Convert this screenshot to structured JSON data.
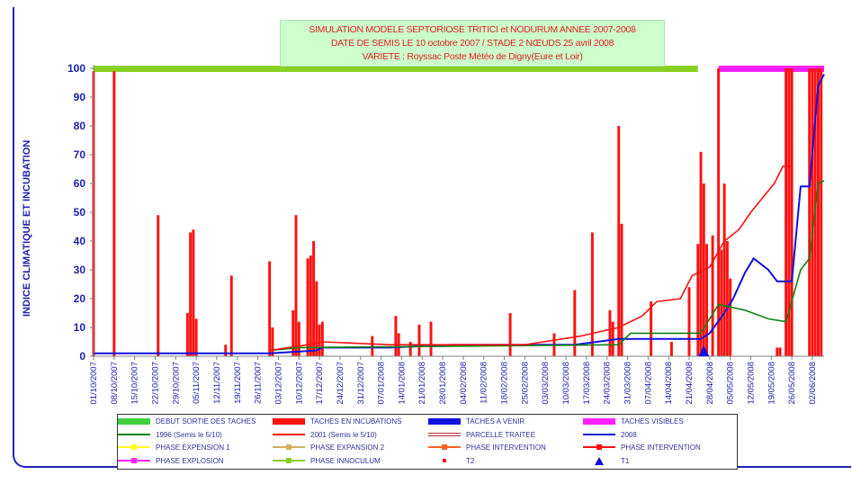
{
  "title_lines": [
    "SIMULATION MODELE SEPTORIOSE TRITICI et NODURUM ANNEE 2007-2008",
    "DATE DE SEMIS LE 10 octobre 2007  /  STADE 2 NŒUDS 25 avril 2008",
    "VARIETE : Royssac        Poste Météo de Digny(Eure et Loir)"
  ],
  "colors": {
    "red": "#ff1010",
    "blue": "#1010e0",
    "green": "#108010",
    "lime": "#88d020",
    "magenta": "#ff20ff",
    "axis_text": "#2020b0",
    "yellow": "#ffff20",
    "tan": "#d0b060",
    "orange": "#ff6020"
  },
  "chart_data": {
    "type": "bar+line",
    "ylabel": "INDICE CLIMATIQUE ET INCUBATION",
    "ylim": [
      0,
      100
    ],
    "yticks": [
      0,
      10,
      20,
      30,
      40,
      50,
      60,
      70,
      80,
      90,
      100
    ],
    "xlim": [
      "2007-10-01",
      "2008-06-06"
    ],
    "xticks": [
      "01/10/2007",
      "08/10/2007",
      "15/10/2007",
      "22/10/2007",
      "29/10/2007",
      "05/11/2007",
      "12/11/2007",
      "19/11/2007",
      "26/11/2007",
      "03/12/2007",
      "10/12/2007",
      "17/12/2007",
      "24/12/2007",
      "31/12/2007",
      "07/01/2008",
      "14/01/2008",
      "21/01/2008",
      "28/01/2008",
      "04/02/2008",
      "11/02/2008",
      "18/02/2008",
      "25/02/2008",
      "03/03/2008",
      "10/03/2008",
      "17/03/2008",
      "24/03/2008",
      "31/03/2008",
      "07/04/2008",
      "14/04/2008",
      "21/04/2008",
      "28/04/2008",
      "05/05/2008",
      "12/05/2008",
      "19/05/2008",
      "26/05/2008",
      "02/06/2008"
    ],
    "incubation_bars": [
      {
        "date": "2007-10-01",
        "value": 99
      },
      {
        "date": "2007-10-08",
        "value": 99
      },
      {
        "date": "2007-10-23",
        "value": 49
      },
      {
        "date": "2007-11-02",
        "value": 15
      },
      {
        "date": "2007-11-03",
        "value": 43
      },
      {
        "date": "2007-11-04",
        "value": 44
      },
      {
        "date": "2007-11-05",
        "value": 13
      },
      {
        "date": "2007-11-15",
        "value": 4
      },
      {
        "date": "2007-11-17",
        "value": 28
      },
      {
        "date": "2007-11-30",
        "value": 33
      },
      {
        "date": "2007-12-01",
        "value": 10
      },
      {
        "date": "2007-12-08",
        "value": 16
      },
      {
        "date": "2007-12-09",
        "value": 49
      },
      {
        "date": "2007-12-10",
        "value": 12
      },
      {
        "date": "2007-12-13",
        "value": 34
      },
      {
        "date": "2007-12-14",
        "value": 35
      },
      {
        "date": "2007-12-15",
        "value": 40
      },
      {
        "date": "2007-12-16",
        "value": 26
      },
      {
        "date": "2007-12-17",
        "value": 11
      },
      {
        "date": "2007-12-18",
        "value": 12
      },
      {
        "date": "2008-01-04",
        "value": 7
      },
      {
        "date": "2008-01-12",
        "value": 14
      },
      {
        "date": "2008-01-13",
        "value": 8
      },
      {
        "date": "2008-01-17",
        "value": 5
      },
      {
        "date": "2008-01-20",
        "value": 11
      },
      {
        "date": "2008-01-24",
        "value": 12
      },
      {
        "date": "2008-02-20",
        "value": 15
      },
      {
        "date": "2008-03-06",
        "value": 8
      },
      {
        "date": "2008-03-13",
        "value": 23
      },
      {
        "date": "2008-03-19",
        "value": 43
      },
      {
        "date": "2008-03-25",
        "value": 16
      },
      {
        "date": "2008-03-26",
        "value": 12
      },
      {
        "date": "2008-03-28",
        "value": 80
      },
      {
        "date": "2008-03-29",
        "value": 46
      },
      {
        "date": "2008-04-08",
        "value": 19
      },
      {
        "date": "2008-04-15",
        "value": 5
      },
      {
        "date": "2008-04-21",
        "value": 24
      },
      {
        "date": "2008-04-24",
        "value": 39
      },
      {
        "date": "2008-04-25",
        "value": 71
      },
      {
        "date": "2008-04-26",
        "value": 60
      },
      {
        "date": "2008-04-27",
        "value": 39
      },
      {
        "date": "2008-04-29",
        "value": 42
      },
      {
        "date": "2008-05-01",
        "value": 100
      },
      {
        "date": "2008-05-02",
        "value": 37
      },
      {
        "date": "2008-05-03",
        "value": 60
      },
      {
        "date": "2008-05-04",
        "value": 40
      },
      {
        "date": "2008-05-05",
        "value": 27
      },
      {
        "date": "2008-05-21",
        "value": 3
      },
      {
        "date": "2008-05-22",
        "value": 3
      },
      {
        "date": "2008-05-24",
        "value": 100
      },
      {
        "date": "2008-05-25",
        "value": 100
      },
      {
        "date": "2008-05-26",
        "value": 100
      },
      {
        "date": "2008-06-01",
        "value": 100
      },
      {
        "date": "2008-06-02",
        "value": 100
      },
      {
        "date": "2008-06-03",
        "value": 100
      },
      {
        "date": "2008-06-04",
        "value": 100
      },
      {
        "date": "2008-06-05",
        "value": 100
      }
    ],
    "series": [
      {
        "name": "2008",
        "color": "#1010e0",
        "points": [
          [
            "2007-10-01",
            1
          ],
          [
            "2007-11-30",
            1
          ],
          [
            "2007-12-16",
            2
          ],
          [
            "2007-12-18",
            3
          ],
          [
            "2008-01-10",
            3
          ],
          [
            "2008-01-31",
            4
          ],
          [
            "2008-02-25",
            4
          ],
          [
            "2008-03-13",
            4
          ],
          [
            "2008-03-28",
            6
          ],
          [
            "2008-04-25",
            6
          ],
          [
            "2008-04-28",
            8
          ],
          [
            "2008-05-03",
            15
          ],
          [
            "2008-05-06",
            20
          ],
          [
            "2008-05-10",
            29
          ],
          [
            "2008-05-13",
            34
          ],
          [
            "2008-05-18",
            30
          ],
          [
            "2008-05-21",
            26
          ],
          [
            "2008-05-26",
            26
          ],
          [
            "2008-05-29",
            59
          ],
          [
            "2008-06-01",
            59
          ],
          [
            "2008-06-04",
            94
          ],
          [
            "2008-06-06",
            98
          ]
        ]
      },
      {
        "name": "1996 (Semis le 5/10)",
        "color": "#108010",
        "points": [
          [
            "2007-11-30",
            2
          ],
          [
            "2007-12-10",
            3
          ],
          [
            "2008-03-28",
            4
          ],
          [
            "2008-04-01",
            8
          ],
          [
            "2008-04-25",
            8
          ],
          [
            "2008-05-01",
            18
          ],
          [
            "2008-05-10",
            16
          ],
          [
            "2008-05-18",
            13
          ],
          [
            "2008-05-24",
            12
          ],
          [
            "2008-05-29",
            30
          ],
          [
            "2008-06-01",
            34
          ],
          [
            "2008-06-04",
            60
          ],
          [
            "2008-06-06",
            61
          ]
        ]
      },
      {
        "name": "2001 (Semis le 5/10)",
        "color": "#ff1010",
        "points": [
          [
            "2007-11-30",
            2
          ],
          [
            "2007-12-13",
            4
          ],
          [
            "2007-12-18",
            5
          ],
          [
            "2008-01-10",
            4
          ],
          [
            "2008-02-25",
            4
          ],
          [
            "2008-03-15",
            7
          ],
          [
            "2008-03-28",
            10
          ],
          [
            "2008-04-05",
            14
          ],
          [
            "2008-04-10",
            19
          ],
          [
            "2008-04-18",
            20
          ],
          [
            "2008-04-22",
            28
          ],
          [
            "2008-04-28",
            31
          ],
          [
            "2008-05-03",
            40
          ],
          [
            "2008-05-08",
            44
          ],
          [
            "2008-05-12",
            50
          ],
          [
            "2008-05-16",
            55
          ],
          [
            "2008-05-20",
            60
          ],
          [
            "2008-05-23",
            66
          ],
          [
            "2008-05-26",
            66
          ]
        ]
      }
    ],
    "phase_bands": [
      {
        "name": "DEBUT SORTIE DES TACHES",
        "color": "#88d020",
        "from": "2007-10-01",
        "to": "2008-04-24",
        "value": 100
      },
      {
        "name": "TACHES VISIBLES",
        "color": "#ff20ff",
        "from": "2008-05-01",
        "to": "2008-06-06",
        "value": 100
      }
    ],
    "t1_marker": {
      "name": "T1",
      "date": "2008-04-26",
      "value": 0
    }
  },
  "legend": [
    {
      "label": "DEBUT SORTIE DES TACHES",
      "kind": "band",
      "color": "#40d040"
    },
    {
      "label": "TACHES EN INCUBATIONS",
      "kind": "band",
      "color": "#ff1010"
    },
    {
      "label": "TACHES A VENIR",
      "kind": "band",
      "color": "#1010e0"
    },
    {
      "label": "TACHES VISIBLES",
      "kind": "band",
      "color": "#ff20ff"
    },
    {
      "label": "1996 (Semis le 5/10)",
      "kind": "line",
      "color": "#108010"
    },
    {
      "label": "2001 (Semis le 5/10)",
      "kind": "line",
      "color": "#ff1010"
    },
    {
      "label": "PARCELLE TRAITEE",
      "kind": "line2",
      "color": "#b03030"
    },
    {
      "label": "2008",
      "kind": "line",
      "color": "#1010e0"
    },
    {
      "label": "PHASE EXPENSION 1",
      "kind": "marker",
      "color": "#ffff20"
    },
    {
      "label": "PHASE EXPANSION 2",
      "kind": "marker",
      "color": "#d0b060"
    },
    {
      "label": "PHASE INTERVENTION",
      "kind": "marker",
      "color": "#ff6020"
    },
    {
      "label": "PHASE INTERVENTION",
      "kind": "marker",
      "color": "#ff1010"
    },
    {
      "label": "PHASE EXPLOSION",
      "kind": "marker",
      "color": "#ff20ff"
    },
    {
      "label": "PHASE INNOCULUM",
      "kind": "marker",
      "color": "#88d020"
    },
    {
      "label": "T2",
      "kind": "dot",
      "color": "#ff1010"
    },
    {
      "label": "T1",
      "kind": "triangle",
      "color": "#1010e0"
    }
  ]
}
